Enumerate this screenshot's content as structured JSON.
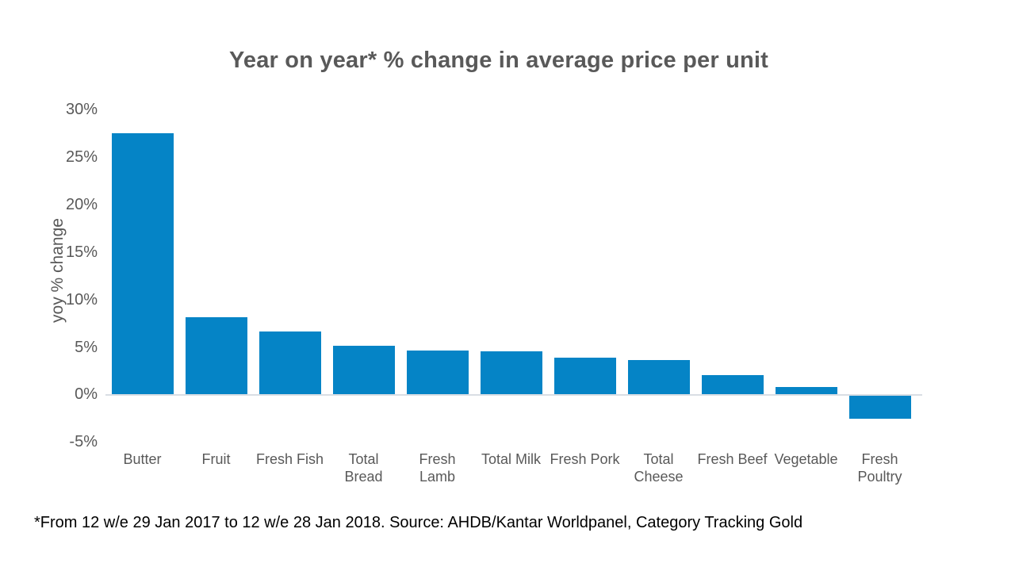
{
  "chart_data": {
    "type": "bar",
    "title": "Year on year* % change in average price per unit",
    "categories": [
      "Butter",
      "Fruit",
      "Fresh Fish",
      "Total Bread",
      "Fresh Lamb",
      "Total Milk",
      "Fresh Pork",
      "Total Cheese",
      "Fresh Beef",
      "Vegetable",
      "Fresh Poultry"
    ],
    "category_label_lines": [
      [
        "Butter"
      ],
      [
        "Fruit"
      ],
      [
        "Fresh Fish"
      ],
      [
        "Total",
        "Bread"
      ],
      [
        "Fresh",
        "Lamb"
      ],
      [
        "Total Milk"
      ],
      [
        "Fresh Pork"
      ],
      [
        "Total",
        "Cheese"
      ],
      [
        "Fresh Beef"
      ],
      [
        "Vegetable"
      ],
      [
        "Fresh",
        "Poultry"
      ]
    ],
    "values": [
      27.5,
      8.1,
      6.6,
      5.1,
      4.6,
      4.5,
      3.9,
      3.6,
      2.0,
      0.8,
      -2.5
    ],
    "xlabel": "",
    "ylabel": "yoy % change",
    "ylim": [
      -5,
      30
    ],
    "yticks": [
      30,
      25,
      20,
      15,
      10,
      5,
      0,
      -5
    ],
    "ytick_suffix": "%",
    "grid": false,
    "legend": false,
    "bar_color": "#0584c6",
    "axis_line_color": "#d9dee4",
    "title_color": "#595959",
    "label_color": "#595959",
    "footnote_color": "#000000",
    "footnote": "*From 12 w/e 29 Jan 2017 to 12 w/e 28 Jan 2018. Source: AHDB/Kantar Worldpanel, Category Tracking Gold"
  }
}
